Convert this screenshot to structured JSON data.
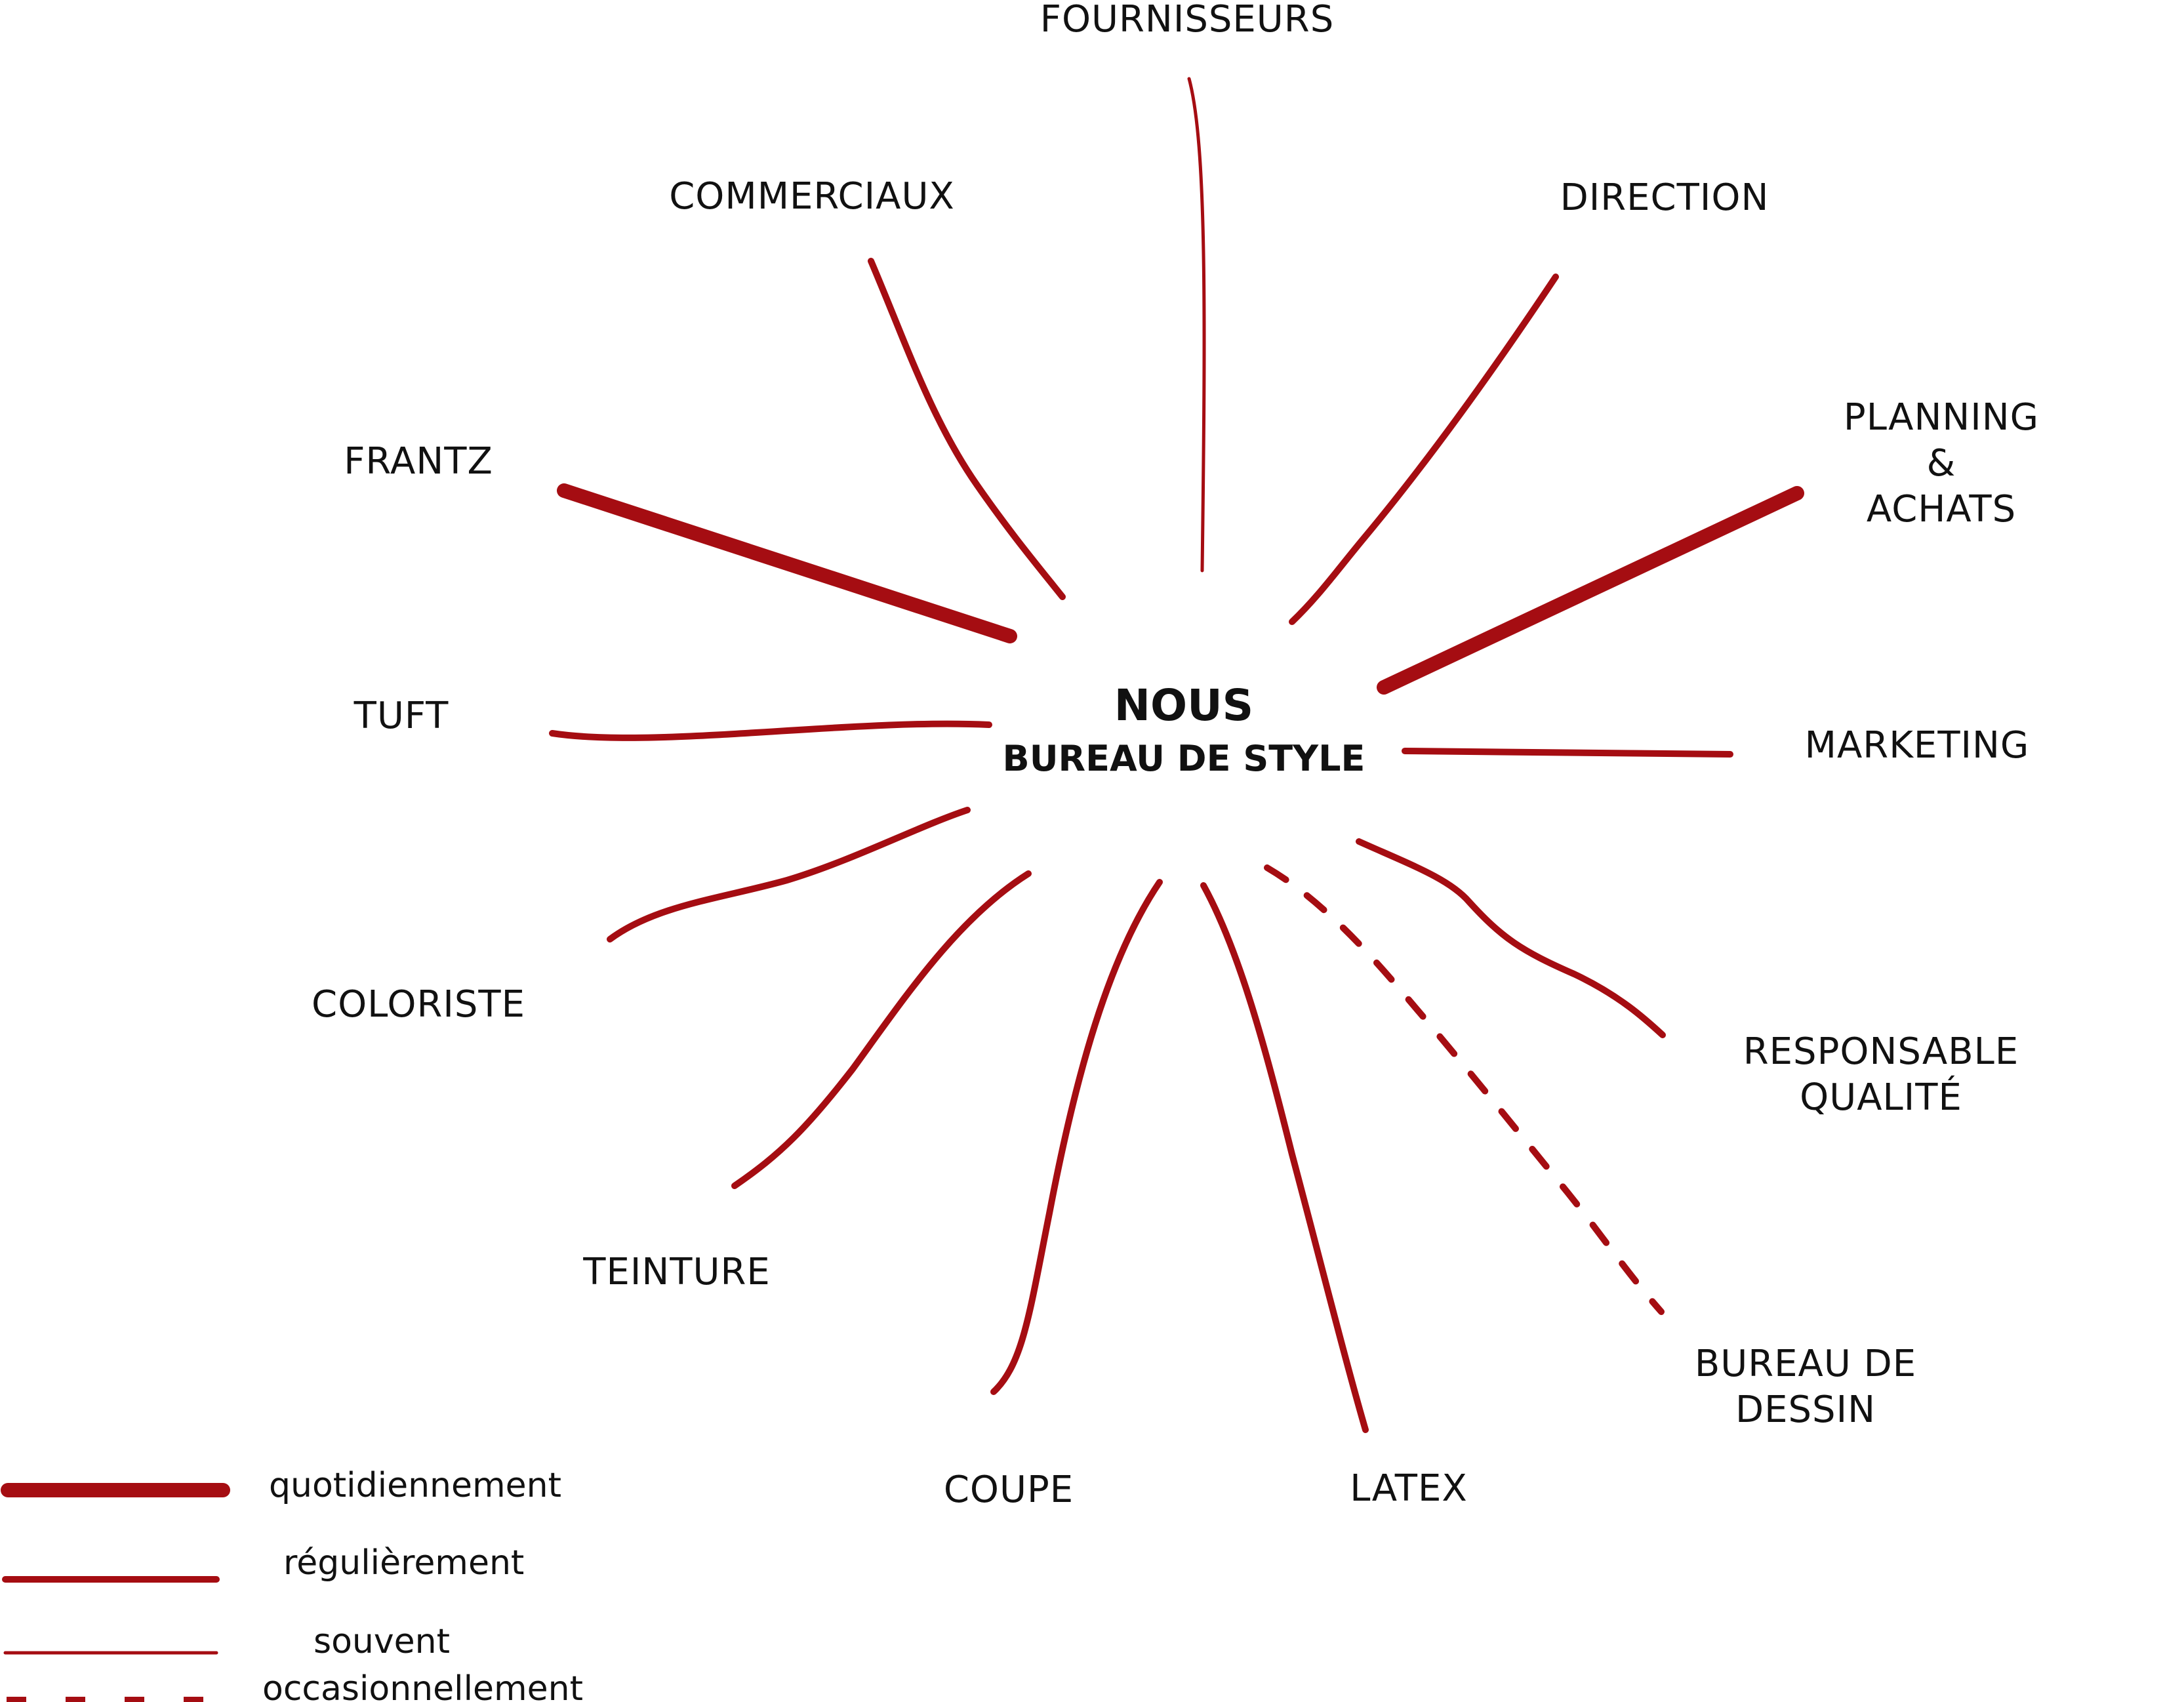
{
  "center": {
    "title": "NOUS",
    "subtitle": "BUREAU DE STYLE"
  },
  "colors": {
    "link": "#a50d12",
    "text": "#111111"
  },
  "nodes": [
    {
      "id": "fournisseurs",
      "label": [
        "FOURNISSEURS"
      ],
      "frequency": "souvent"
    },
    {
      "id": "commerciaux",
      "label": [
        "COMMERCIAUX"
      ],
      "frequency": "régulièrement"
    },
    {
      "id": "direction",
      "label": [
        "DIRECTION"
      ],
      "frequency": "régulièrement"
    },
    {
      "id": "frantz",
      "label": [
        "FRANTZ"
      ],
      "frequency": "quotidiennement"
    },
    {
      "id": "planning",
      "label": [
        "PLANNING",
        "&",
        "ACHATS"
      ],
      "frequency": "quotidiennement"
    },
    {
      "id": "tuft",
      "label": [
        "TUFT"
      ],
      "frequency": "régulièrement"
    },
    {
      "id": "marketing",
      "label": [
        "MARKETING"
      ],
      "frequency": "régulièrement"
    },
    {
      "id": "coloriste",
      "label": [
        "COLORISTE"
      ],
      "frequency": "régulièrement"
    },
    {
      "id": "responsable",
      "label": [
        "RESPONSABLE",
        "QUALITÉ"
      ],
      "frequency": "régulièrement"
    },
    {
      "id": "teinture",
      "label": [
        "TEINTURE"
      ],
      "frequency": "régulièrement"
    },
    {
      "id": "bureau-dessin",
      "label": [
        "BUREAU DE",
        "DESSIN"
      ],
      "frequency": "occasionnellement"
    },
    {
      "id": "coupe",
      "label": [
        "COUPE"
      ],
      "frequency": "régulièrement"
    },
    {
      "id": "latex",
      "label": [
        "LATEX"
      ],
      "frequency": "régulièrement"
    }
  ],
  "legend": [
    {
      "key": "quotidiennement",
      "label": "quotidiennement"
    },
    {
      "key": "régulièrement",
      "label": "régulièrement"
    },
    {
      "key": "souvent",
      "label": "souvent"
    },
    {
      "key": "occasionnellement",
      "label": "occasionnellement"
    }
  ]
}
